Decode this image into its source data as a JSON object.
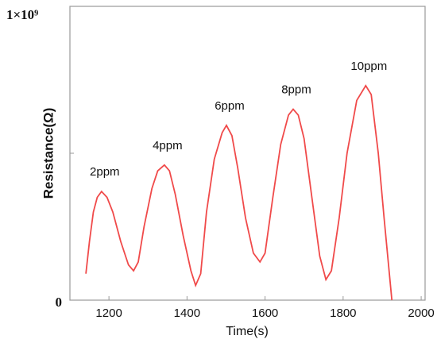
{
  "chart_data": {
    "type": "line",
    "x_label": "Time(s)",
    "y_label": "Resistance(Ω)",
    "x": [
      1141,
      1150,
      1160,
      1170,
      1181,
      1195,
      1210,
      1230,
      1250,
      1263,
      1275,
      1290,
      1310,
      1325,
      1342,
      1355,
      1370,
      1390,
      1410,
      1422,
      1435,
      1450,
      1470,
      1490,
      1501,
      1515,
      1530,
      1550,
      1570,
      1587,
      1600,
      1620,
      1640,
      1660,
      1672,
      1685,
      1700,
      1720,
      1740,
      1756,
      1770,
      1790,
      1810,
      1835,
      1858,
      1872,
      1890,
      1905,
      1925
    ],
    "series": [
      {
        "color": "#f04a4a",
        "values": [
          90000000,
          200000000,
          300000000,
          350000000,
          370000000,
          350000000,
          300000000,
          200000000,
          120000000,
          100000000,
          130000000,
          250000000,
          380000000,
          440000000,
          460000000,
          440000000,
          360000000,
          220000000,
          100000000,
          50000000,
          90000000,
          300000000,
          480000000,
          570000000,
          595000000,
          560000000,
          450000000,
          280000000,
          160000000,
          130000000,
          160000000,
          350000000,
          530000000,
          630000000,
          650000000,
          630000000,
          550000000,
          350000000,
          150000000,
          70000000,
          100000000,
          280000000,
          500000000,
          680000000,
          730000000,
          700000000,
          500000000,
          280000000,
          0
        ]
      }
    ],
    "annotations": [
      "2ppm",
      "4ppm",
      "6ppm",
      "8ppm",
      "10ppm"
    ],
    "xlim": [
      1100,
      2010
    ],
    "xticks": [
      1200,
      1400,
      1600,
      1800,
      2000
    ],
    "ylim": [
      0,
      1000000000
    ],
    "yticks": [
      {
        "value": 0,
        "label": "0"
      },
      {
        "value": 1000000000,
        "label": "1×10⁹"
      }
    ],
    "minor_yticks": [
      500000000
    ]
  }
}
